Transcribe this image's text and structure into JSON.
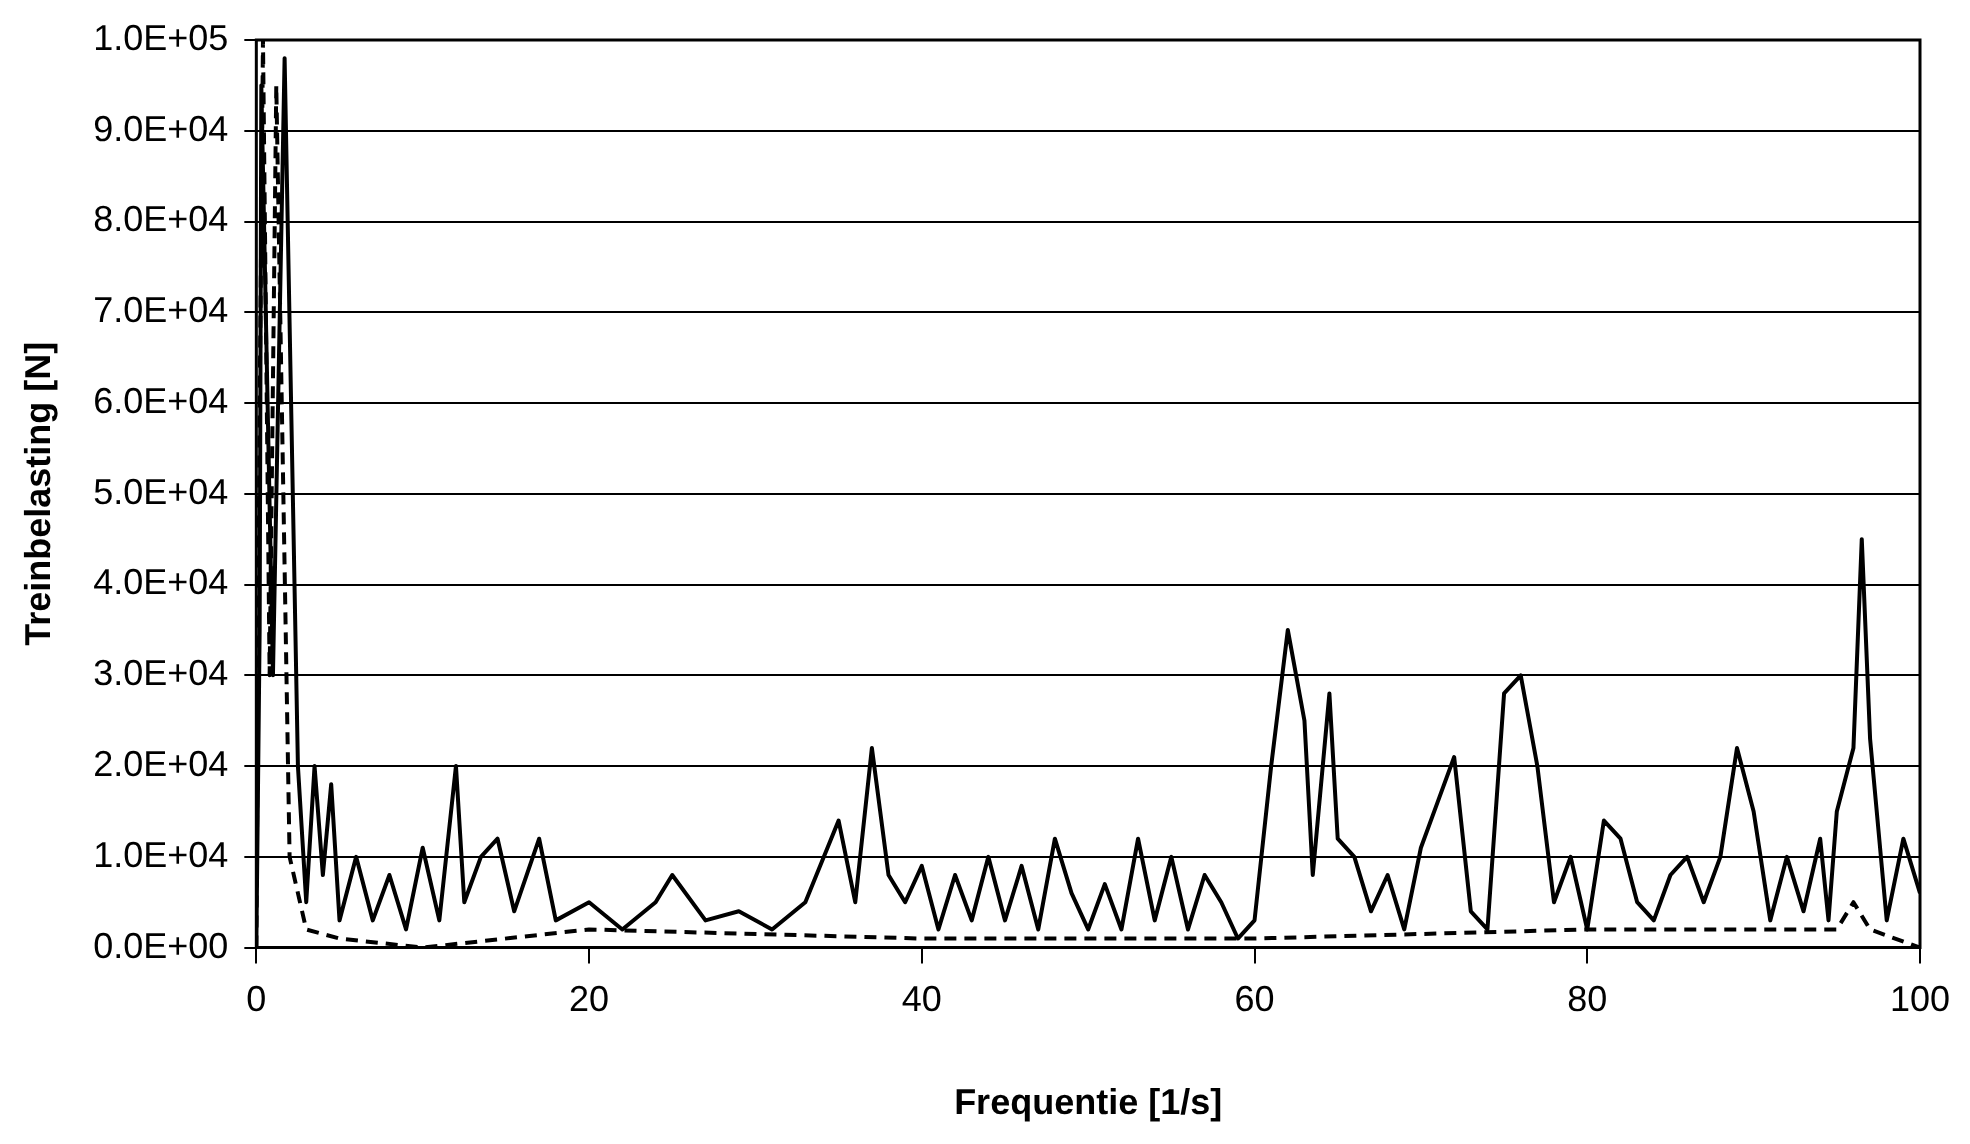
{
  "chart_data": {
    "type": "line",
    "xlabel": "Frequentie [1/s]",
    "ylabel": "Treinbelasting [N]",
    "xlim": [
      0,
      100
    ],
    "xticks": [
      0,
      20,
      40,
      60,
      80,
      100
    ],
    "ylim": [
      0,
      100000
    ],
    "yticks": [
      {
        "value": 0,
        "label": "0.0E+00"
      },
      {
        "value": 10000,
        "label": "1.0E+04"
      },
      {
        "value": 20000,
        "label": "2.0E+04"
      },
      {
        "value": 30000,
        "label": "3.0E+04"
      },
      {
        "value": 40000,
        "label": "4.0E+04"
      },
      {
        "value": 50000,
        "label": "5.0E+04"
      },
      {
        "value": 60000,
        "label": "6.0E+04"
      },
      {
        "value": 70000,
        "label": "7.0E+04"
      },
      {
        "value": 80000,
        "label": "8.0E+04"
      },
      {
        "value": 90000,
        "label": "9.0E+04"
      },
      {
        "value": 100000,
        "label": "1.0E+05"
      }
    ],
    "grid": "y",
    "legend": false,
    "marker": "none",
    "series": [
      {
        "color": "#000000",
        "line_style": "solid",
        "x": [
          0,
          0.2,
          0.3,
          1,
          1.7,
          2.5,
          3,
          3.5,
          4,
          4.5,
          5,
          6,
          7,
          8,
          9,
          10,
          11,
          12,
          12.5,
          13.5,
          14.5,
          15.5,
          17,
          18,
          20,
          22,
          24,
          25,
          27,
          29,
          31,
          33,
          35,
          36,
          37,
          38,
          39,
          40,
          41,
          42,
          43,
          44,
          45,
          46,
          47,
          48,
          49,
          50,
          51,
          52,
          53,
          54,
          55,
          56,
          57,
          58,
          59,
          60,
          61,
          62,
          63,
          63.5,
          64.5,
          65,
          66,
          67,
          68,
          69,
          70,
          71,
          72,
          73,
          74,
          75,
          76,
          77,
          78,
          79,
          80,
          81,
          82,
          83,
          84,
          85,
          86,
          87,
          88,
          89,
          90,
          91,
          92,
          93,
          94,
          94.5,
          95,
          96,
          96.5,
          97,
          98,
          99,
          100
        ],
        "values": [
          0,
          35000,
          95000,
          30000,
          98000,
          20000,
          5000,
          20000,
          8000,
          18000,
          3000,
          10000,
          3000,
          8000,
          2000,
          11000,
          3000,
          20000,
          5000,
          10000,
          12000,
          4000,
          12000,
          3000,
          5000,
          2000,
          5000,
          8000,
          3000,
          4000,
          2000,
          5000,
          14000,
          5000,
          22000,
          8000,
          5000,
          9000,
          2000,
          8000,
          3000,
          10000,
          3000,
          9000,
          2000,
          12000,
          6000,
          2000,
          7000,
          2000,
          12000,
          3000,
          10000,
          2000,
          8000,
          5000,
          1000,
          3000,
          20000,
          35000,
          25000,
          8000,
          28000,
          12000,
          10000,
          4000,
          8000,
          2000,
          11000,
          16000,
          21000,
          4000,
          2000,
          28000,
          30000,
          20000,
          5000,
          10000,
          2000,
          14000,
          12000,
          5000,
          3000,
          8000,
          10000,
          5000,
          10000,
          22000,
          15000,
          3000,
          10000,
          4000,
          12000,
          3000,
          15000,
          22000,
          45000,
          23000,
          3000,
          12000,
          6000
        ]
      },
      {
        "color": "#000000",
        "line_style": "dashed",
        "x": [
          0,
          0.2,
          0.4,
          0.8,
          1.2,
          2,
          3,
          5,
          10,
          20,
          40,
          60,
          80,
          95,
          96,
          97,
          100
        ],
        "values": [
          0,
          60000,
          100000,
          30000,
          95000,
          10000,
          2000,
          1000,
          0,
          2000,
          1000,
          1000,
          2000,
          2000,
          5000,
          2000,
          0
        ]
      }
    ]
  }
}
